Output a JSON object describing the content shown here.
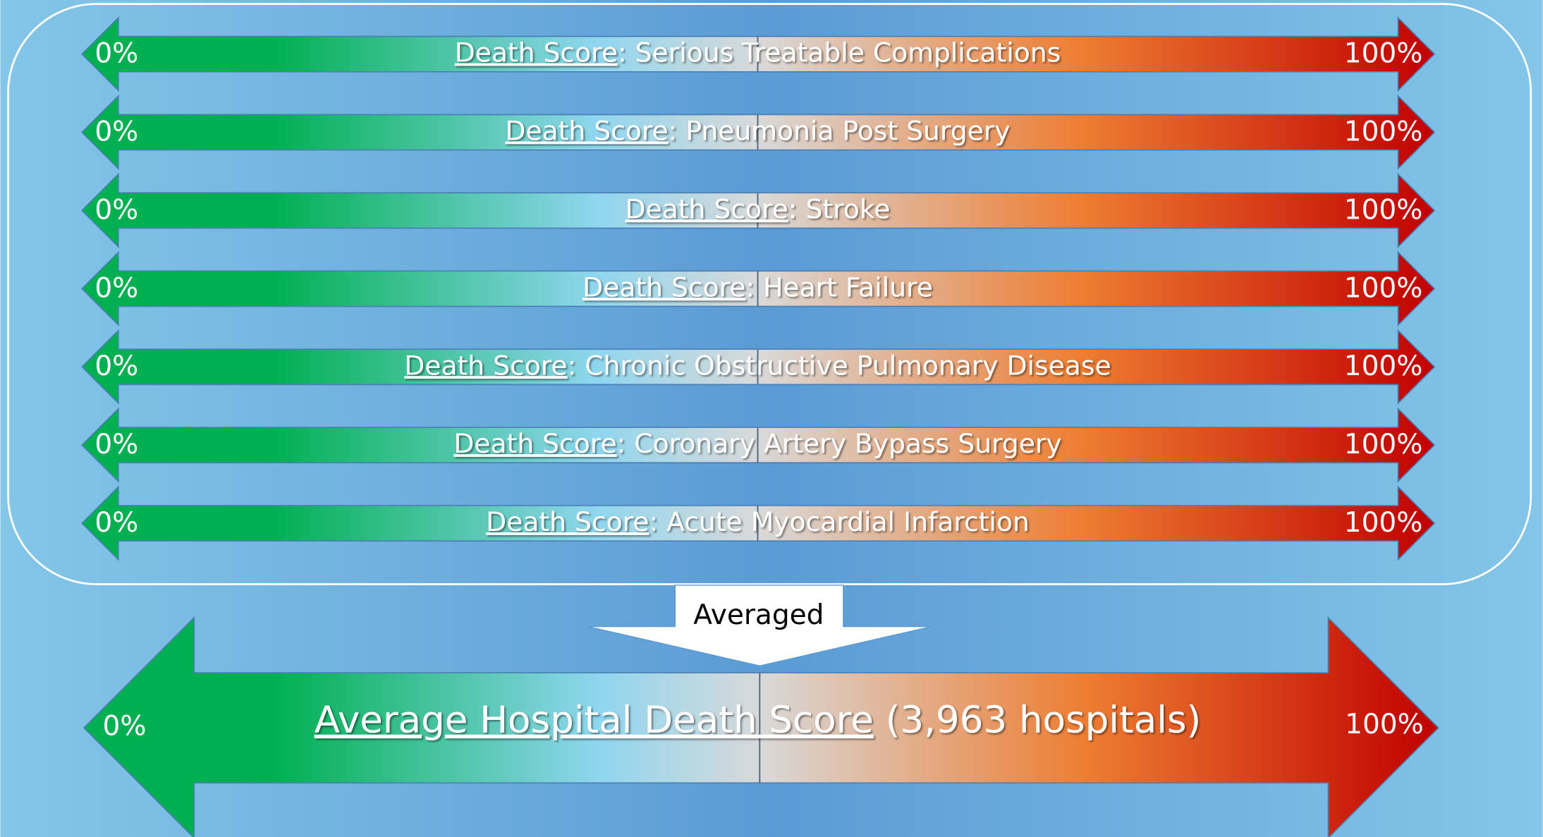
{
  "rows": [
    {
      "underlined": "Death Score",
      "rest": ": Serious Treatable Complications",
      "left": "0%",
      "right": "100%"
    },
    {
      "underlined": "Death Score",
      "rest": ": Pneumonia Post Surgery",
      "left": "0%",
      "right": "100%"
    },
    {
      "underlined": "Death Score",
      "rest": ": Stroke",
      "left": "0%",
      "right": "100%"
    },
    {
      "underlined": "Death Score",
      "rest": ": Heart  Failure",
      "left": "0%",
      "right": "100%"
    },
    {
      "underlined": "Death Score",
      "rest": ": Chronic Obstructive Pulmonary Disease",
      "left": "0%",
      "right": "100%"
    },
    {
      "underlined": "Death Score",
      "rest": ": Coronary Artery Bypass Surgery",
      "left": "0%",
      "right": "100%"
    },
    {
      "underlined": "Death Score",
      "rest": ": Acute Myocardial Infarction",
      "left": "0%",
      "right": "100%"
    }
  ],
  "averaged": "Averaged",
  "summary": {
    "underlined": "Average Hospital Death Score",
    "rest": " (3,963 hospitals)",
    "left": "0%",
    "right": "100%"
  }
}
